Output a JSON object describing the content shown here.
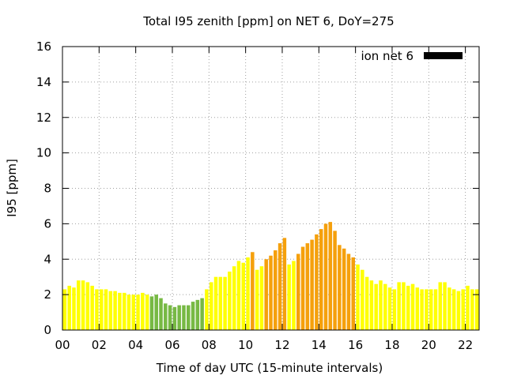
{
  "chart_data": {
    "type": "bar",
    "title": "Total I95 zenith [ppm] on NET 6, DoY=275",
    "xlabel": "Time of day UTC (15-minute intervals)",
    "ylabel": "I95 [ppm]",
    "ylim": [
      0,
      16
    ],
    "yticks": [
      0,
      2,
      4,
      6,
      8,
      10,
      12,
      14,
      16
    ],
    "xticks": [
      {
        "hour": 0,
        "label": "00"
      },
      {
        "hour": 2,
        "label": "02"
      },
      {
        "hour": 4,
        "label": "04"
      },
      {
        "hour": 6,
        "label": "06"
      },
      {
        "hour": 8,
        "label": "08"
      },
      {
        "hour": 10,
        "label": "10"
      },
      {
        "hour": 12,
        "label": "12"
      },
      {
        "hour": 14,
        "label": "14"
      },
      {
        "hour": 16,
        "label": "16"
      },
      {
        "hour": 18,
        "label": "18"
      },
      {
        "hour": 20,
        "label": "20"
      },
      {
        "hour": 22,
        "label": "22"
      }
    ],
    "grid": true,
    "legend": {
      "label": "ion net 6",
      "placement": "top-right",
      "color": "#000000"
    },
    "interval_minutes": 15,
    "colors": {
      "low": "#ffff00",
      "quiet": "#77b944",
      "high": "#f5a00c"
    },
    "values": [
      2.3,
      2.5,
      2.4,
      2.8,
      2.8,
      2.7,
      2.5,
      2.3,
      2.3,
      2.3,
      2.2,
      2.2,
      2.1,
      2.1,
      2.0,
      2.0,
      2.0,
      2.1,
      2.0,
      1.9,
      2.0,
      1.8,
      1.5,
      1.4,
      1.3,
      1.4,
      1.4,
      1.4,
      1.6,
      1.7,
      1.8,
      2.3,
      2.7,
      3.0,
      3.0,
      3.0,
      3.3,
      3.6,
      3.9,
      3.8,
      4.1,
      4.4,
      3.4,
      3.6,
      4.0,
      4.2,
      4.5,
      4.9,
      5.2,
      3.7,
      3.9,
      4.3,
      4.7,
      4.9,
      5.1,
      5.4,
      5.7,
      6.0,
      6.1,
      5.6,
      4.8,
      4.6,
      4.3,
      4.1,
      3.7,
      3.4,
      3.0,
      2.8,
      2.6,
      2.8,
      2.6,
      2.4,
      2.3,
      2.7,
      2.7,
      2.5,
      2.6,
      2.4,
      2.3,
      2.3,
      2.3,
      2.3,
      2.7,
      2.7,
      2.4,
      2.3,
      2.2,
      2.3,
      2.5,
      2.3,
      2.3
    ],
    "levels": [
      "low",
      "low",
      "low",
      "low",
      "low",
      "low",
      "low",
      "low",
      "low",
      "low",
      "low",
      "low",
      "low",
      "low",
      "low",
      "low",
      "low",
      "low",
      "low",
      "quiet",
      "quiet",
      "quiet",
      "quiet",
      "quiet",
      "quiet",
      "quiet",
      "quiet",
      "quiet",
      "quiet",
      "quiet",
      "quiet",
      "low",
      "low",
      "low",
      "low",
      "low",
      "low",
      "low",
      "low",
      "low",
      "low",
      "high",
      "low",
      "low",
      "high",
      "high",
      "high",
      "high",
      "high",
      "low",
      "low",
      "high",
      "high",
      "high",
      "high",
      "high",
      "high",
      "high",
      "high",
      "high",
      "high",
      "high",
      "high",
      "high",
      "low",
      "low",
      "low",
      "low",
      "low",
      "low",
      "low",
      "low",
      "low",
      "low",
      "low",
      "low",
      "low",
      "low",
      "low",
      "low",
      "low",
      "low",
      "low",
      "low",
      "low",
      "low",
      "low",
      "low",
      "low",
      "low",
      "low"
    ]
  }
}
